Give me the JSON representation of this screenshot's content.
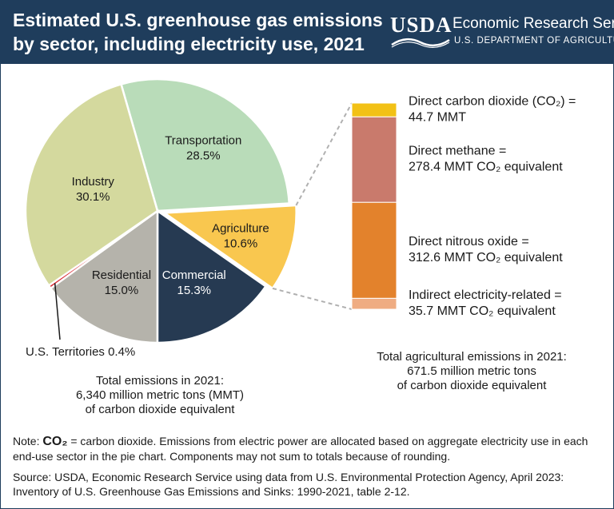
{
  "header": {
    "title": "Estimated U.S. greenhouse gas emissions by sector, including electricity use, 2021",
    "logo_text": "USDA",
    "agency": "Economic Research Service",
    "department": "U.S. DEPARTMENT OF AGRICULTURE"
  },
  "colors": {
    "header_bg": "#1f3d5c",
    "transportation": "#b9dcb9",
    "industry": "#d4d99e",
    "agriculture": "#f9c74f",
    "commercial": "#263a52",
    "residential": "#b5b3ab",
    "territories": "#d9262f",
    "co2": "#f2c116",
    "methane": "#c97a6c",
    "nitrous": "#e3822c",
    "electricity": "#efac82"
  },
  "chart_data": [
    {
      "type": "pie",
      "categories": [
        "Transportation",
        "Agriculture",
        "Commercial",
        "Residential",
        "U.S. Territories",
        "Industry"
      ],
      "values": [
        28.5,
        10.6,
        15.3,
        15.0,
        0.4,
        30.1
      ],
      "labels": [
        "28.5%",
        "10.6%",
        "15.3%",
        "15.0%",
        "0.4%",
        "30.1%"
      ],
      "exploded": "Agriculture",
      "total": "Total emissions in 2021:\n6,340 million metric tons (MMT)\nof carbon dioxide equivalent"
    },
    {
      "type": "bar",
      "stacked": true,
      "series": [
        {
          "name": "Indirect electricity-related",
          "value": 35.7,
          "label_line1": "Indirect electricity-related =",
          "label_line2": "35.7 MMT CO₂ equivalent"
        },
        {
          "name": "Direct nitrous oxide",
          "value": 312.6,
          "label_line1": "Direct nitrous oxide =",
          "label_line2": "312.6 MMT CO₂ equivalent"
        },
        {
          "name": "Direct methane",
          "value": 278.4,
          "label_line1": "Direct methane =",
          "label_line2": "278.4 MMT CO₂ equivalent"
        },
        {
          "name": "Direct carbon dioxide (CO₂)",
          "value": 44.7,
          "label_line1": "Direct carbon dioxide (CO₂) =",
          "label_line2": "44.7 MMT"
        }
      ],
      "total": "Total agricultural emissions in 2021:\n671.5 million metric tons\nof carbon dioxide equivalent"
    }
  ],
  "footer": {
    "note_prefix": "Note: ",
    "note_term": "CO₂",
    "note_text": " = carbon dioxide. Emissions from electric power are allocated based on aggregate electricity use in each end-use sector in the pie chart. Components may not sum to totals because of rounding.",
    "source": "Source: USDA, Economic Research Service using data from U.S. Environmental Protection Agency, April 2023: Inventory of U.S. Greenhouse Gas Emissions and Sinks: 1990-2021, table 2-12."
  }
}
